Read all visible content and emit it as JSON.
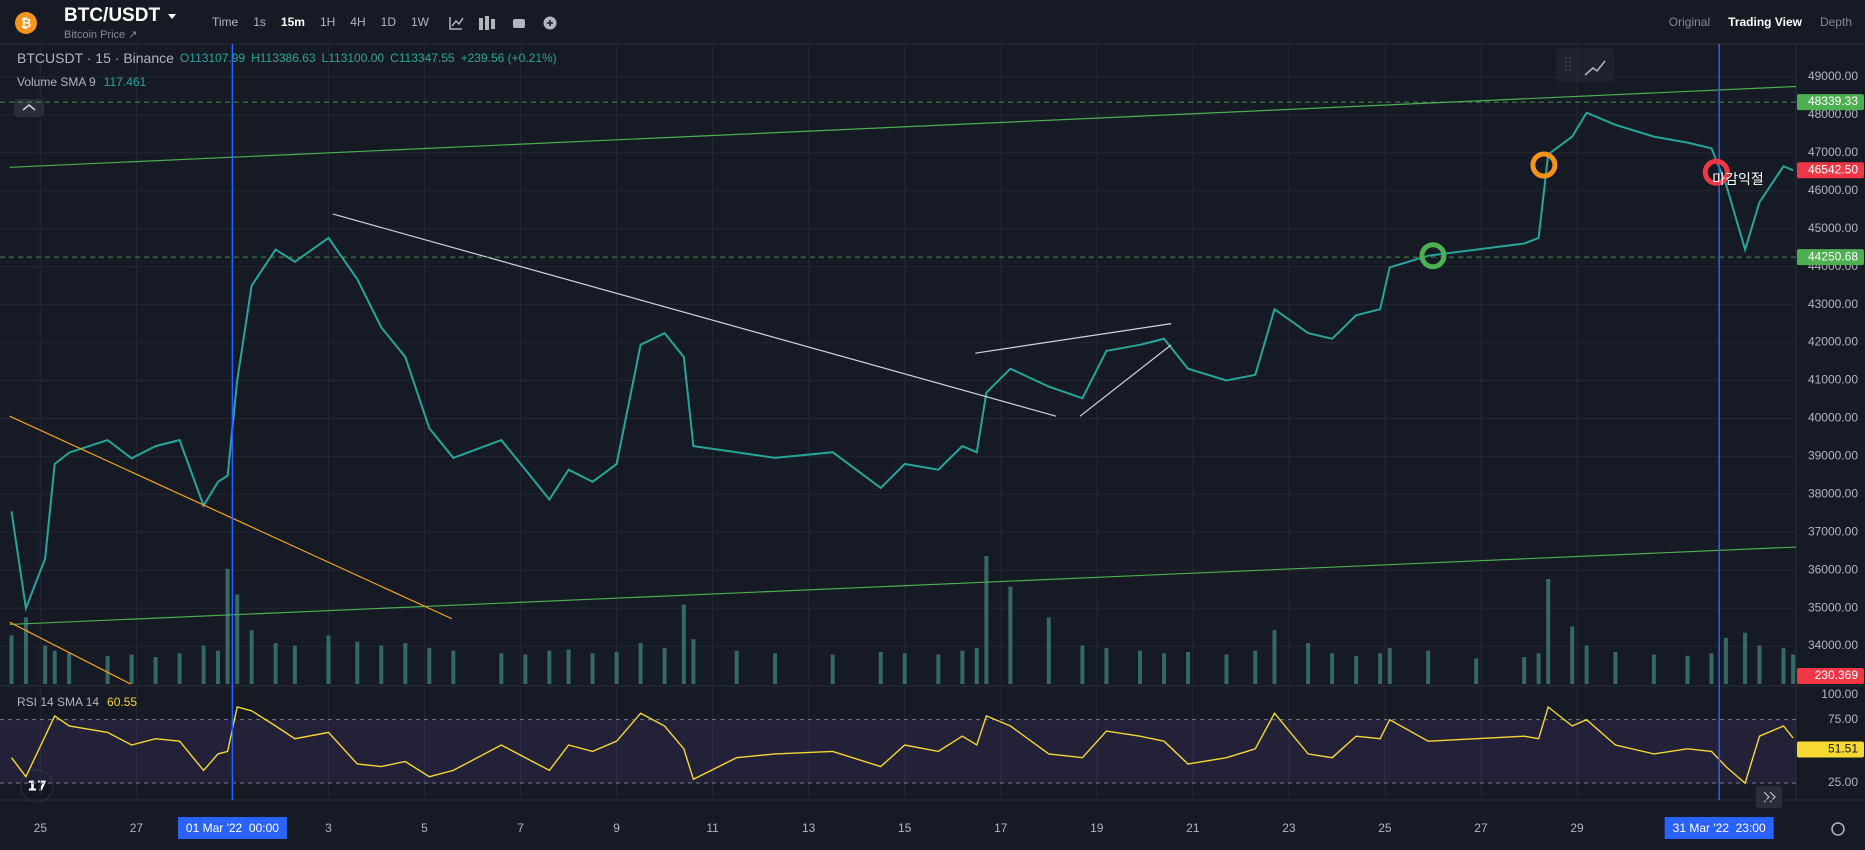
{
  "toolbar": {
    "symbol": "BTC/USDT",
    "subtitle": "Bitcoin Price ↗",
    "intervals": [
      "Time",
      "1s",
      "15m",
      "1H",
      "4H",
      "1D",
      "1W"
    ],
    "active_interval": 2,
    "views": [
      "Original",
      "Trading View",
      "Depth"
    ],
    "active_view": 1
  },
  "chart_data": [
    {
      "type": "line",
      "title": "BTCUSDT · 15 · Binance",
      "ohlc": [
        "O113107.99",
        "H113386.63",
        "L113100.00",
        "C113347.55"
      ],
      "change": "+239.56 (+0.21%)",
      "color": "#26a69a",
      "x": [
        -0.6,
        -0.3,
        0.1,
        0.3,
        0.6,
        1.4,
        1.9,
        2.4,
        2.9,
        3.4,
        3.7,
        3.9,
        4.1,
        4.4,
        4.9,
        5.3,
        6.0,
        6.6,
        7.1,
        7.6,
        8.1,
        8.6,
        9.6,
        10.1,
        10.6,
        11.0,
        11.5,
        12.0,
        12.5,
        13.0,
        13.4,
        13.6,
        14.5,
        15.3,
        16.5,
        17.5,
        18.0,
        18.7,
        19.2,
        19.5,
        19.7,
        20.2,
        21.0,
        21.7,
        22.2,
        22.9,
        23.4,
        23.9,
        24.7,
        25.3,
        25.7,
        26.4,
        26.9,
        27.4,
        27.9,
        28.1,
        28.9,
        29.9,
        30.9,
        31.2,
        31.4,
        31.9,
        32.2,
        32.8,
        33.6,
        34.3,
        34.8,
        35.1,
        35.5,
        35.8,
        36.3,
        36.5
      ],
      "values": [
        37550,
        35000,
        36300,
        38800,
        39100,
        39430,
        38950,
        39270,
        39430,
        37700,
        38330,
        38490,
        41000,
        43500,
        44450,
        44130,
        44760,
        43670,
        42400,
        41620,
        39740,
        38960,
        39430,
        38650,
        37860,
        38650,
        38330,
        38800,
        41940,
        42250,
        41620,
        39270,
        39110,
        38960,
        39110,
        38170,
        38800,
        38650,
        39270,
        39110,
        40680,
        41310,
        40840,
        40530,
        41780,
        41940,
        42100,
        41310,
        41000,
        41150,
        42880,
        42250,
        42100,
        42720,
        42880,
        43980,
        44290,
        44450,
        44610,
        44760,
        46960,
        47430,
        48060,
        47740,
        47430,
        47270,
        47120,
        46180,
        44450,
        45700,
        46650,
        46540
      ],
      "xlim": [
        -0.84,
        36.56
      ],
      "ylim": [
        33000,
        49870
      ],
      "xticks": [
        {
          "value": 0,
          "label": "25"
        },
        {
          "value": 2,
          "label": "27"
        },
        {
          "value": 6,
          "label": "3"
        },
        {
          "value": 8,
          "label": "5"
        },
        {
          "value": 10,
          "label": "7"
        },
        {
          "value": 12,
          "label": "9"
        },
        {
          "value": 14,
          "label": "11"
        },
        {
          "value": 16,
          "label": "13"
        },
        {
          "value": 18,
          "label": "15"
        },
        {
          "value": 20,
          "label": "17"
        },
        {
          "value": 22,
          "label": "19"
        },
        {
          "value": 24,
          "label": "21"
        },
        {
          "value": 26,
          "label": "23"
        },
        {
          "value": 28,
          "label": "25"
        },
        {
          "value": 30,
          "label": "27"
        },
        {
          "value": 32,
          "label": "29"
        }
      ],
      "yticks": [
        {
          "value": 34000,
          "label": "34000.00"
        },
        {
          "value": 35000,
          "label": "35000.00"
        },
        {
          "value": 36000,
          "label": "36000.00"
        },
        {
          "value": 37000,
          "label": "37000.00"
        },
        {
          "value": 38000,
          "label": "38000.00"
        },
        {
          "value": 39000,
          "label": "39000.00"
        },
        {
          "value": 40000,
          "label": "40000.00"
        },
        {
          "value": 41000,
          "label": "41000.00"
        },
        {
          "value": 42000,
          "label": "42000.00"
        },
        {
          "value": 43000,
          "label": "43000.00"
        },
        {
          "value": 44000,
          "label": "44000.00"
        },
        {
          "value": 45000,
          "label": "45000.00"
        },
        {
          "value": 46000,
          "label": "46000.00"
        },
        {
          "value": 47000,
          "label": "47000.00"
        },
        {
          "value": 48000,
          "label": "48000.00"
        },
        {
          "value": 49000,
          "label": "49000.00"
        }
      ],
      "grid": true,
      "hlines": [
        48339.33,
        44250.68
      ],
      "hline_color": "#4caf50",
      "last_price": {
        "value": 46542.5,
        "label": "46542.50"
      },
      "last_color": "#f23645",
      "date_labels": [
        {
          "value": 4,
          "label": "01 Mar '22  00:00"
        },
        {
          "value": 34.96,
          "label": "31 Mar '22  23:00"
        }
      ],
      "date_color": "#2962ff",
      "trendlines": [
        {
          "x": [
            -0.64,
            36.56
          ],
          "y": [
            46620,
            48750
          ],
          "color": "#4caf50"
        },
        {
          "x": [
            -0.64,
            36.56
          ],
          "y": [
            34570,
            36610
          ],
          "color": "#4caf50"
        },
        {
          "x": [
            -0.64,
            8.57
          ],
          "y": [
            40060,
            34720
          ],
          "color": "#f7a21b"
        },
        {
          "x": [
            -0.64,
            1.88
          ],
          "y": [
            34630,
            33000
          ],
          "color": "#f7a21b"
        },
        {
          "x": [
            6.09,
            21.15
          ],
          "y": [
            45390,
            40060
          ],
          "color": "#d1d4dc"
        },
        {
          "x": [
            19.47,
            23.55
          ],
          "y": [
            41720,
            42500
          ],
          "color": "#d1d4dc"
        },
        {
          "x": [
            21.65,
            23.55
          ],
          "y": [
            40060,
            41940
          ],
          "color": "#d1d4dc"
        }
      ],
      "markers": [
        {
          "x": 29.0,
          "y": 44290,
          "color": "#4caf50"
        },
        {
          "x": 31.31,
          "y": 46680,
          "color": "#f7931a"
        },
        {
          "x": 34.9,
          "y": 46490,
          "color": "#f23645",
          "label": "마감익절"
        }
      ]
    },
    {
      "type": "bar",
      "title": "Volume SMA 9",
      "sma": 117.461,
      "last": 230.369,
      "color": "#3f7d74",
      "last_color": "#f23645",
      "ylim": [
        0,
        5000
      ],
      "values": [
        380,
        520,
        300,
        260,
        240,
        220,
        230,
        210,
        240,
        300,
        260,
        900,
        700,
        420,
        320,
        300,
        380,
        330,
        300,
        320,
        280,
        260,
        240,
        230,
        260,
        270,
        240,
        250,
        320,
        280,
        620,
        350,
        260,
        240,
        230,
        250,
        240,
        230,
        260,
        280,
        1000,
        760,
        520,
        300,
        280,
        260,
        240,
        250,
        230,
        260,
        420,
        320,
        240,
        220,
        240,
        280,
        260,
        200,
        210,
        240,
        820,
        450,
        300,
        250,
        230,
        220,
        240,
        360,
        400,
        300,
        280,
        230
      ]
    },
    {
      "type": "line",
      "title": "RSI 14 SMA 14",
      "current": 60.55,
      "axis_value": 51.51,
      "color": "#f7d731",
      "ylim": [
        14,
        100
      ],
      "yticks": [
        {
          "value": 100,
          "label": "100.00"
        },
        {
          "value": 75,
          "label": "75.00"
        },
        {
          "value": 25,
          "label": "25.00"
        }
      ],
      "values": [
        45,
        30,
        62,
        78,
        70,
        65,
        55,
        60,
        58,
        35,
        48,
        50,
        85,
        82,
        70,
        60,
        65,
        40,
        38,
        42,
        30,
        35,
        55,
        45,
        35,
        55,
        50,
        58,
        80,
        70,
        52,
        28,
        45,
        48,
        50,
        38,
        55,
        50,
        62,
        55,
        78,
        70,
        48,
        45,
        66,
        62,
        58,
        40,
        45,
        52,
        80,
        48,
        45,
        62,
        60,
        75,
        58,
        60,
        62,
        60,
        85,
        70,
        75,
        55,
        48,
        52,
        50,
        38,
        25,
        62,
        70,
        60.55
      ]
    }
  ]
}
